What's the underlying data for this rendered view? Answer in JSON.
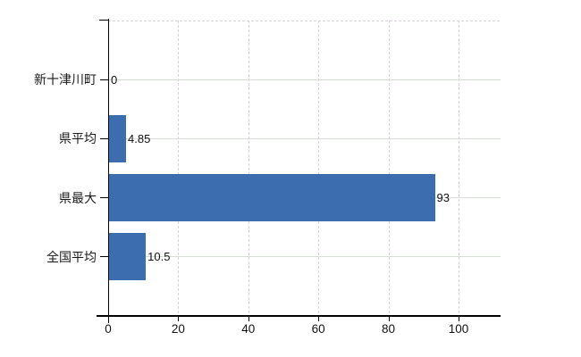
{
  "chart_data": {
    "type": "bar",
    "orientation": "horizontal",
    "title": "",
    "xlabel": "",
    "ylabel": "",
    "categories": [
      "新十津川町",
      "県平均",
      "県最大",
      "全国平均"
    ],
    "values": [
      0,
      4.85,
      93,
      10.5
    ],
    "value_labels": [
      "0",
      "4.85",
      "93",
      "10.5"
    ],
    "x_ticks": [
      0,
      20,
      40,
      60,
      80,
      100
    ],
    "x_tick_labels": [
      "0",
      "20",
      "40",
      "60",
      "80",
      "100"
    ],
    "xlim": [
      0,
      112
    ],
    "grid": true,
    "legend": "none",
    "bar_color": "#3c6dae",
    "hgrid_color": "#d6ded6",
    "vgrid_color": "#d8d0d8",
    "axis_color": "#000000",
    "background_color": "#ffffff"
  }
}
